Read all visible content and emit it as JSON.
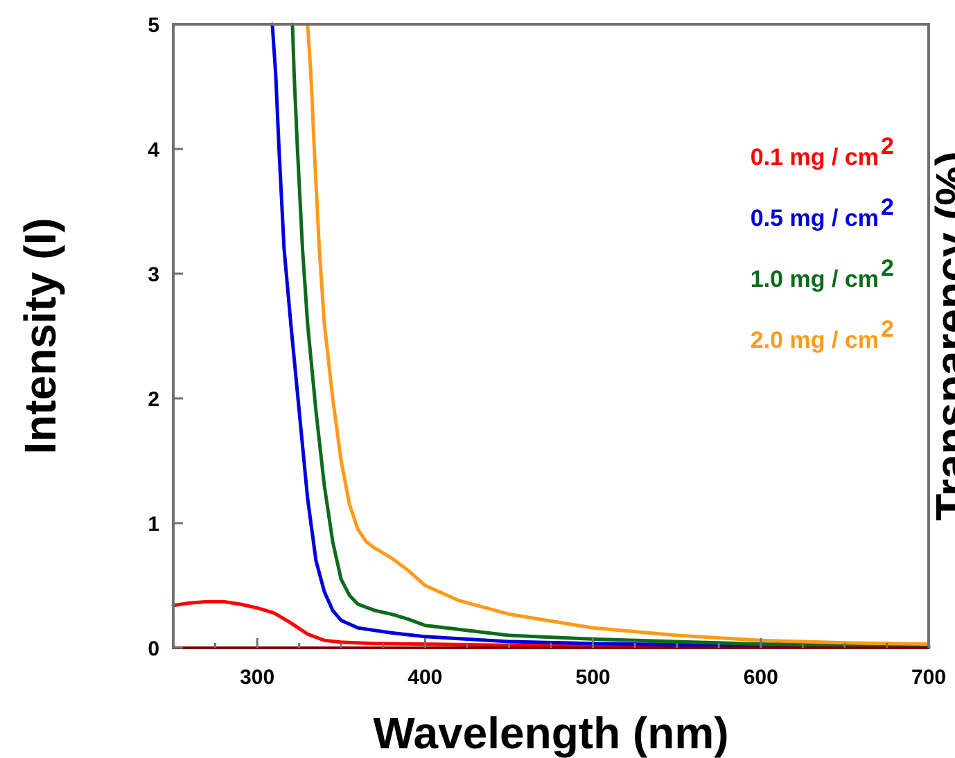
{
  "chart_data": {
    "type": "line",
    "xlabel": "Wavelength (nm)",
    "ylabel": "Intensity (I)",
    "y2label": "Transparency (%)",
    "xlim": [
      250,
      700
    ],
    "ylim": [
      0,
      5
    ],
    "xticks": [
      300,
      400,
      500,
      600,
      700
    ],
    "yticks": [
      0,
      1,
      2,
      3,
      4,
      5
    ],
    "legend_placement": "top-right",
    "grid": false,
    "series": [
      {
        "name": "0.1 mg / cm",
        "sup": "2",
        "color": "#ff0000",
        "points": [
          [
            250,
            0.34
          ],
          [
            260,
            0.36
          ],
          [
            270,
            0.37
          ],
          [
            280,
            0.37
          ],
          [
            290,
            0.35
          ],
          [
            300,
            0.32
          ],
          [
            310,
            0.28
          ],
          [
            320,
            0.2
          ],
          [
            330,
            0.11
          ],
          [
            340,
            0.06
          ],
          [
            350,
            0.045
          ],
          [
            370,
            0.035
          ],
          [
            400,
            0.03
          ],
          [
            450,
            0.02
          ],
          [
            500,
            0.015
          ],
          [
            600,
            0.01
          ],
          [
            700,
            0.005
          ]
        ]
      },
      {
        "name": "0.5 mg / cm",
        "sup": "2",
        "color": "#0000dd",
        "points": [
          [
            309,
            5
          ],
          [
            311,
            4.6
          ],
          [
            313,
            4.0
          ],
          [
            316,
            3.2
          ],
          [
            320,
            2.6
          ],
          [
            325,
            1.9
          ],
          [
            330,
            1.2
          ],
          [
            335,
            0.7
          ],
          [
            340,
            0.45
          ],
          [
            345,
            0.3
          ],
          [
            350,
            0.22
          ],
          [
            360,
            0.16
          ],
          [
            370,
            0.14
          ],
          [
            380,
            0.12
          ],
          [
            400,
            0.09
          ],
          [
            450,
            0.05
          ],
          [
            500,
            0.035
          ],
          [
            600,
            0.015
          ],
          [
            700,
            0.005
          ]
        ]
      },
      {
        "name": "1.0 mg / cm",
        "sup": "2",
        "color": "#0d6b1a",
        "points": [
          [
            321,
            5
          ],
          [
            322,
            4.6
          ],
          [
            324,
            4.0
          ],
          [
            327,
            3.2
          ],
          [
            330,
            2.6
          ],
          [
            335,
            1.9
          ],
          [
            340,
            1.3
          ],
          [
            345,
            0.85
          ],
          [
            350,
            0.55
          ],
          [
            355,
            0.42
          ],
          [
            360,
            0.35
          ],
          [
            370,
            0.3
          ],
          [
            380,
            0.27
          ],
          [
            390,
            0.23
          ],
          [
            400,
            0.18
          ],
          [
            450,
            0.1
          ],
          [
            500,
            0.07
          ],
          [
            600,
            0.03
          ],
          [
            700,
            0.01
          ]
        ]
      },
      {
        "name": "2.0 mg / cm",
        "sup": "2",
        "color": "#ff9a1a",
        "points": [
          [
            330,
            5
          ],
          [
            332,
            4.6
          ],
          [
            334,
            4.0
          ],
          [
            337,
            3.2
          ],
          [
            340,
            2.6
          ],
          [
            345,
            2.0
          ],
          [
            350,
            1.5
          ],
          [
            355,
            1.15
          ],
          [
            360,
            0.95
          ],
          [
            365,
            0.85
          ],
          [
            370,
            0.8
          ],
          [
            380,
            0.72
          ],
          [
            390,
            0.62
          ],
          [
            400,
            0.5
          ],
          [
            420,
            0.38
          ],
          [
            450,
            0.27
          ],
          [
            500,
            0.16
          ],
          [
            550,
            0.1
          ],
          [
            600,
            0.06
          ],
          [
            650,
            0.04
          ],
          [
            700,
            0.03
          ]
        ]
      }
    ]
  }
}
